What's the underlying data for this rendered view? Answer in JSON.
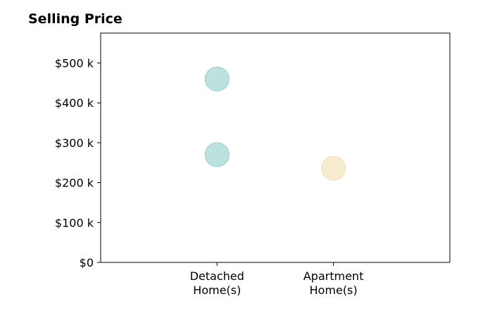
{
  "chart_data": {
    "type": "scatter",
    "title": "Selling Price",
    "categories": [
      "Detached\nHome(s)",
      "Apartment\nHome(s)"
    ],
    "x_range": [
      -1,
      2
    ],
    "ylim": [
      0,
      575000
    ],
    "y_ticks": [
      0,
      100000,
      200000,
      300000,
      400000,
      500000
    ],
    "y_tick_labels": [
      "$0",
      "$100 k",
      "$200 k",
      "$300 k",
      "$400 k",
      "$500 k"
    ],
    "points": [
      {
        "category_index": 0,
        "value": 460000,
        "color": "#8fcec7"
      },
      {
        "category_index": 0,
        "value": 270000,
        "color": "#8fcec7"
      },
      {
        "category_index": 1,
        "value": 236000,
        "color": "#f2ddb0"
      }
    ],
    "grid": false,
    "legend": "none"
  }
}
